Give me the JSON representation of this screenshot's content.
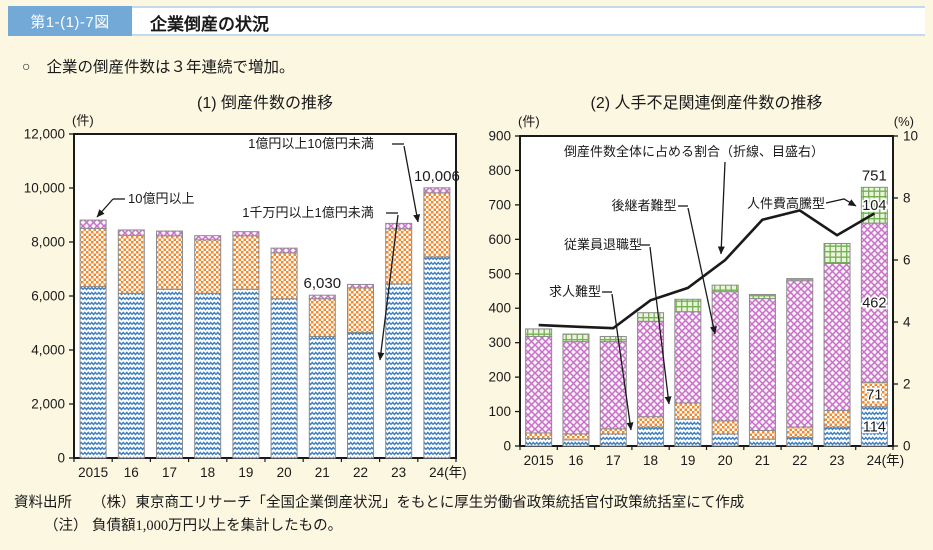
{
  "header": {
    "figure_no": "第1-(1)-7図",
    "title": "企業倒産の状況"
  },
  "summary": {
    "bullet": "○",
    "text": "企業の倒産件数は３年連続で増加。"
  },
  "colors": {
    "page_bg": "#FBF7E1",
    "header_blue": "#73A9D6",
    "header_border": "#C2DAEE",
    "bar_blue": "#3E7EC1",
    "bar_orange": "#EF8A30",
    "bar_purple": "#C86FC8",
    "bar_green": "#74B152",
    "trend_line": "#1A1A1A"
  },
  "chart_data": [
    {
      "type": "bar",
      "title": "(1) 倒産件数の推移",
      "unit_left": "(件)",
      "categories": [
        "2015",
        "16",
        "17",
        "18",
        "19",
        "20",
        "21",
        "22",
        "23",
        "24(年)"
      ],
      "ylim": [
        0,
        12000
      ],
      "ytick_step": 2000,
      "grid": false,
      "legend": "annotated-arrows",
      "series": [
        {
          "name": "1千万円以上1億円未満",
          "pattern": "blue-wave",
          "values": [
            6350,
            6100,
            6250,
            6100,
            6250,
            5900,
            4500,
            4650,
            6450,
            7450
          ]
        },
        {
          "name": "1億円以上10億円未満",
          "pattern": "orange-check",
          "values": [
            2150,
            2150,
            1980,
            1980,
            1980,
            1700,
            1400,
            1650,
            2040,
            2370
          ]
        },
        {
          "name": "10億円以上",
          "pattern": "purple-cross",
          "values": [
            312,
            196,
            175,
            155,
            153,
            173,
            130,
            128,
            200,
            186
          ]
        }
      ],
      "totals": [
        8812,
        8446,
        8405,
        8235,
        8383,
        7773,
        6030,
        6428,
        8690,
        10006
      ],
      "value_labels": [
        {
          "index": 6,
          "text": "6,030"
        },
        {
          "index": 9,
          "text": "10,006"
        }
      ],
      "annotations": [
        {
          "id": "a-10oku",
          "text": "10億円以上"
        },
        {
          "id": "a-1oku",
          "text": "1億円以上10億円未満"
        },
        {
          "id": "a-1senman",
          "text": "1千万円以上1億円未満"
        }
      ]
    },
    {
      "type": "bar-line",
      "title": "(2) 人手不足関連倒産件数の推移",
      "unit_left": "(件)",
      "unit_right": "(%)",
      "categories": [
        "2015",
        "16",
        "17",
        "18",
        "19",
        "20",
        "21",
        "22",
        "23",
        "24(年)"
      ],
      "ylim_left": [
        0,
        900
      ],
      "ytick_step_left": 100,
      "ylim_right": [
        0,
        10
      ],
      "ytick_step_right": 2,
      "grid": false,
      "series": [
        {
          "name": "求人難型",
          "pattern": "blue-wave",
          "values": [
            22,
            18,
            35,
            55,
            78,
            35,
            20,
            25,
            55,
            114
          ]
        },
        {
          "name": "従業員退職型",
          "pattern": "orange-check",
          "values": [
            16,
            17,
            15,
            30,
            47,
            38,
            25,
            30,
            48,
            71
          ]
        },
        {
          "name": "後継者難型",
          "pattern": "purple-cross",
          "values": [
            280,
            268,
            253,
            277,
            265,
            375,
            383,
            425,
            427,
            462
          ]
        },
        {
          "name": "人件費高騰型",
          "pattern": "green-grid",
          "values": [
            22,
            22,
            15,
            25,
            36,
            19,
            12,
            6,
            58,
            104
          ]
        }
      ],
      "totals": [
        340,
        325,
        318,
        387,
        426,
        467,
        440,
        486,
        588,
        751
      ],
      "line": {
        "name": "倒産件数全体に占める割合（折線、目盛右）",
        "axis": "right",
        "values": [
          3.9,
          3.85,
          3.8,
          4.7,
          5.1,
          6.0,
          7.3,
          7.6,
          6.8,
          7.5
        ]
      },
      "value_labels_last_bar": {
        "total": "751",
        "green": "104",
        "purple": "462",
        "orange": "71",
        "blue": "114"
      },
      "annotations": [
        {
          "id": "b-line",
          "text": "倒産件数全体に占める割合（折線、目盛右）"
        },
        {
          "id": "b-kokei",
          "text": "後継者難型"
        },
        {
          "id": "b-jinken",
          "text": "人件費高騰型"
        },
        {
          "id": "b-taishoku",
          "text": "従業員退職型"
        },
        {
          "id": "b-kyujin",
          "text": "求人難型"
        }
      ]
    }
  ],
  "footer": {
    "source_label": "資料出所",
    "source_text": "（株）東京商工リサーチ「全国企業倒産状況」をもとに厚生労働省政策統括官付政策統括室にて作成",
    "note_label": "（注）",
    "note_text": "負債額1,000万円以上を集計したもの。"
  }
}
